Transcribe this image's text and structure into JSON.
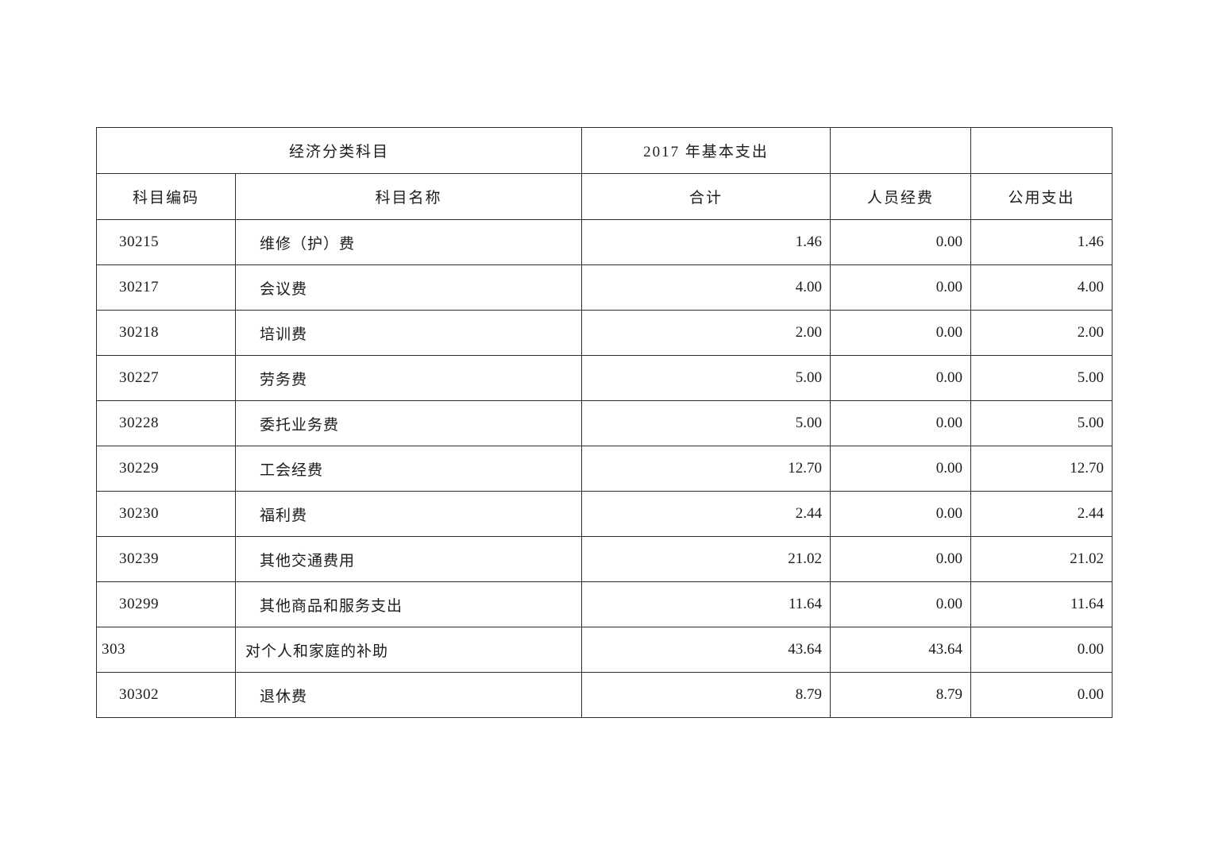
{
  "table": {
    "header": {
      "group_classification": "经济分类科目",
      "group_year_expense": "2017 年基本支出",
      "group_blank_1": "",
      "group_blank_2": "",
      "col_code": "科目编码",
      "col_name": "科目名称",
      "col_total": "合计",
      "col_personnel": "人员经费",
      "col_public": "公用支出"
    },
    "rows": [
      {
        "code": "30215",
        "name": "维修（护）费",
        "total": "1.46",
        "personnel": "0.00",
        "public": "1.46",
        "level": "child"
      },
      {
        "code": "30217",
        "name": "会议费",
        "total": "4.00",
        "personnel": "0.00",
        "public": "4.00",
        "level": "child"
      },
      {
        "code": "30218",
        "name": "培训费",
        "total": "2.00",
        "personnel": "0.00",
        "public": "2.00",
        "level": "child"
      },
      {
        "code": "30227",
        "name": "劳务费",
        "total": "5.00",
        "personnel": "0.00",
        "public": "5.00",
        "level": "child"
      },
      {
        "code": "30228",
        "name": "委托业务费",
        "total": "5.00",
        "personnel": "0.00",
        "public": "5.00",
        "level": "child"
      },
      {
        "code": "30229",
        "name": "工会经费",
        "total": "12.70",
        "personnel": "0.00",
        "public": "12.70",
        "level": "child"
      },
      {
        "code": "30230",
        "name": "福利费",
        "total": "2.44",
        "personnel": "0.00",
        "public": "2.44",
        "level": "child"
      },
      {
        "code": "30239",
        "name": "其他交通费用",
        "total": "21.02",
        "personnel": "0.00",
        "public": "21.02",
        "level": "child"
      },
      {
        "code": "30299",
        "name": "其他商品和服务支出",
        "total": "11.64",
        "personnel": "0.00",
        "public": "11.64",
        "level": "child"
      },
      {
        "code": "303",
        "name": "对个人和家庭的补助",
        "total": "43.64",
        "personnel": "43.64",
        "public": "0.00",
        "level": "parent"
      },
      {
        "code": "30302",
        "name": "退休费",
        "total": "8.79",
        "personnel": "8.79",
        "public": "0.00",
        "level": "child"
      }
    ]
  }
}
